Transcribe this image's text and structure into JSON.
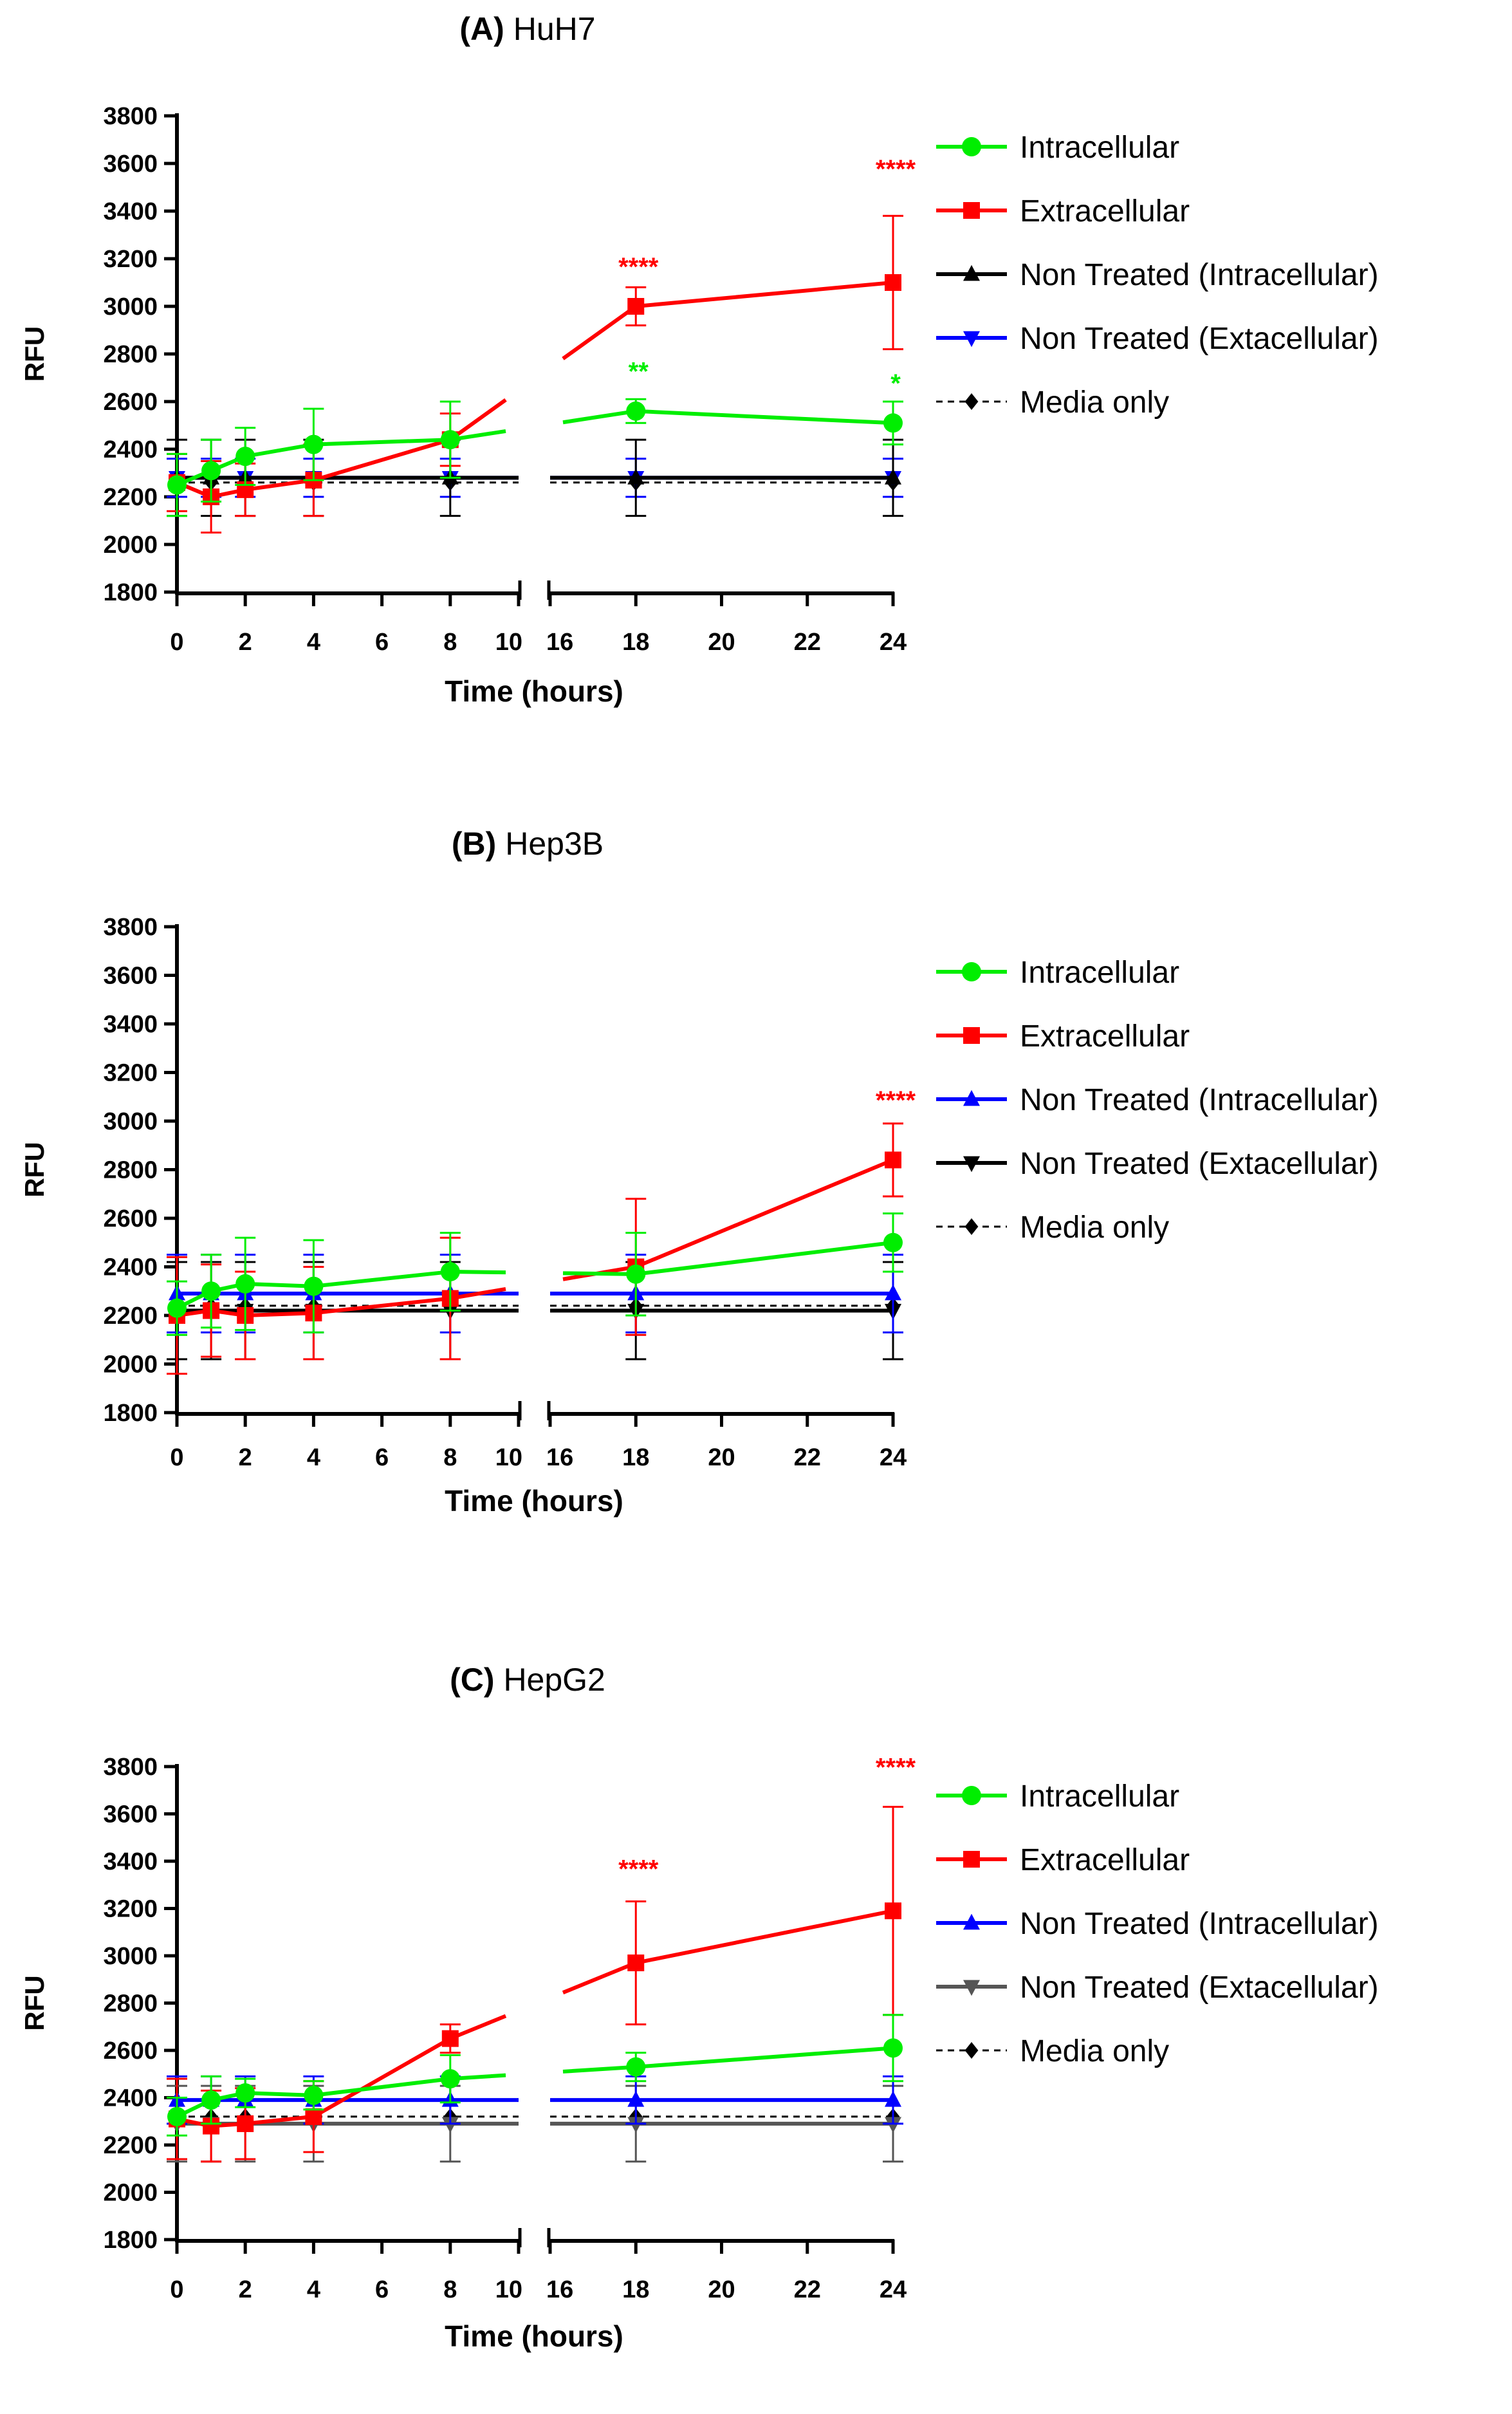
{
  "chart_data": [
    {
      "type": "line",
      "panel_label": "(A)",
      "title": "HuH7",
      "xlabel": "Time (hours)",
      "ylabel": "RFU",
      "ylim": [
        1800,
        3800
      ],
      "yticks": [
        1800,
        2000,
        2200,
        2400,
        2600,
        2800,
        3000,
        3200,
        3400,
        3600,
        3800
      ],
      "xticks_left": [
        0,
        2,
        4,
        6,
        8,
        10
      ],
      "xticks_right": [
        16,
        18,
        20,
        22,
        24
      ],
      "x_break": [
        10,
        16
      ],
      "legend_position": "right",
      "series": [
        {
          "name": "Intracellular",
          "color": "#00ee00",
          "marker": "circle",
          "dashed": false,
          "x": [
            0,
            1,
            2,
            4,
            8,
            18,
            24
          ],
          "values": [
            2250,
            2310,
            2370,
            2420,
            2440,
            2560,
            2510
          ],
          "errors": [
            130,
            130,
            120,
            150,
            160,
            50,
            90
          ]
        },
        {
          "name": "Extracellular",
          "color": "#ff0000",
          "marker": "square",
          "dashed": false,
          "x": [
            0,
            1,
            2,
            4,
            8,
            18,
            24
          ],
          "values": [
            2260,
            2200,
            2230,
            2270,
            2440,
            3000,
            3100
          ],
          "errors": [
            120,
            150,
            110,
            150,
            110,
            80,
            280
          ]
        },
        {
          "name": "Non Treated (Intracellular)",
          "color": "#000000",
          "marker": "triangle-up",
          "dashed": false,
          "x": [
            0,
            1,
            2,
            4,
            8,
            18,
            24
          ],
          "values": [
            2280,
            2280,
            2280,
            2280,
            2280,
            2280,
            2280
          ],
          "errors": [
            160,
            160,
            160,
            160,
            160,
            160,
            160
          ]
        },
        {
          "name": "Non Treated (Extacellular)",
          "color": "#0000ff",
          "marker": "triangle-down",
          "dashed": false,
          "x": [
            0,
            1,
            2,
            4,
            8,
            18,
            24
          ],
          "values": [
            2280,
            2280,
            2280,
            2280,
            2280,
            2280,
            2280
          ],
          "errors": [
            80,
            80,
            80,
            80,
            80,
            80,
            80
          ]
        },
        {
          "name": "Media only",
          "color": "#000000",
          "marker": "diamond",
          "dashed": true,
          "x": [
            0,
            1,
            2,
            4,
            8,
            18,
            24
          ],
          "values": [
            2260,
            2260,
            2260,
            2260,
            2260,
            2260,
            2260
          ],
          "errors": [
            0,
            0,
            0,
            0,
            0,
            0,
            0
          ]
        }
      ],
      "annotations": [
        {
          "text": "****",
          "x": 18,
          "y": 3130,
          "color": "#ff0000"
        },
        {
          "text": "**",
          "x": 18,
          "y": 2690,
          "color": "#00ee00"
        },
        {
          "text": "****",
          "x": 24,
          "y": 3540,
          "color": "#ff0000"
        },
        {
          "text": "*",
          "x": 24,
          "y": 2640,
          "color": "#00ee00"
        }
      ]
    },
    {
      "type": "line",
      "panel_label": "(B)",
      "title": "Hep3B",
      "xlabel": "Time (hours)",
      "ylabel": "RFU",
      "ylim": [
        1800,
        3800
      ],
      "yticks": [
        1800,
        2000,
        2200,
        2400,
        2600,
        2800,
        3000,
        3200,
        3400,
        3600,
        3800
      ],
      "xticks_left": [
        0,
        2,
        4,
        6,
        8,
        10
      ],
      "xticks_right": [
        16,
        18,
        20,
        22,
        24
      ],
      "x_break": [
        10,
        16
      ],
      "legend_position": "right",
      "series": [
        {
          "name": "Intracellular",
          "color": "#00ee00",
          "marker": "circle",
          "dashed": false,
          "x": [
            0,
            1,
            2,
            4,
            8,
            18,
            24
          ],
          "values": [
            2230,
            2300,
            2330,
            2320,
            2380,
            2370,
            2500
          ],
          "errors": [
            110,
            150,
            190,
            190,
            160,
            170,
            120
          ]
        },
        {
          "name": "Extracellular",
          "color": "#ff0000",
          "marker": "square",
          "dashed": false,
          "x": [
            0,
            1,
            2,
            4,
            8,
            18,
            24
          ],
          "values": [
            2200,
            2220,
            2200,
            2210,
            2270,
            2400,
            2840
          ],
          "errors": [
            240,
            190,
            180,
            190,
            250,
            280,
            150
          ]
        },
        {
          "name": "Non Treated (Intracellular)",
          "color": "#0000ff",
          "marker": "triangle-up",
          "dashed": false,
          "x": [
            0,
            1,
            2,
            4,
            8,
            18,
            24
          ],
          "values": [
            2290,
            2290,
            2290,
            2290,
            2290,
            2290,
            2290
          ],
          "errors": [
            160,
            160,
            160,
            160,
            160,
            160,
            160
          ]
        },
        {
          "name": "Non Treated (Extacellular)",
          "color": "#000000",
          "marker": "triangle-down",
          "dashed": false,
          "x": [
            0,
            1,
            2,
            4,
            8,
            18,
            24
          ],
          "values": [
            2220,
            2220,
            2220,
            2220,
            2220,
            2220,
            2220
          ],
          "errors": [
            200,
            200,
            200,
            200,
            200,
            200,
            200
          ]
        },
        {
          "name": "Media only",
          "color": "#000000",
          "marker": "diamond",
          "dashed": true,
          "x": [
            0,
            1,
            2,
            4,
            8,
            18,
            24
          ],
          "values": [
            2240,
            2240,
            2240,
            2240,
            2240,
            2240,
            2240
          ],
          "errors": [
            0,
            0,
            0,
            0,
            0,
            0,
            0
          ]
        }
      ],
      "annotations": [
        {
          "text": "****",
          "x": 24,
          "y": 3050,
          "color": "#ff0000"
        }
      ]
    },
    {
      "type": "line",
      "panel_label": "(C)",
      "title": "HepG2",
      "xlabel": "Time (hours)",
      "ylabel": "RFU",
      "ylim": [
        1800,
        3800
      ],
      "yticks": [
        1800,
        2000,
        2200,
        2400,
        2600,
        2800,
        3000,
        3200,
        3400,
        3600,
        3800
      ],
      "xticks_left": [
        0,
        2,
        4,
        6,
        8,
        10
      ],
      "xticks_right": [
        16,
        18,
        20,
        22,
        24
      ],
      "x_break": [
        10,
        16
      ],
      "legend_position": "right",
      "series": [
        {
          "name": "Intracellular",
          "color": "#00ee00",
          "marker": "circle",
          "dashed": false,
          "x": [
            0,
            1,
            2,
            4,
            8,
            18,
            24
          ],
          "values": [
            2320,
            2390,
            2420,
            2410,
            2480,
            2530,
            2610
          ],
          "errors": [
            80,
            100,
            60,
            60,
            100,
            60,
            140
          ]
        },
        {
          "name": "Extracellular",
          "color": "#ff0000",
          "marker": "square",
          "dashed": false,
          "x": [
            0,
            1,
            2,
            4,
            8,
            18,
            24
          ],
          "values": [
            2310,
            2280,
            2290,
            2320,
            2650,
            2970,
            3190
          ],
          "errors": [
            170,
            150,
            150,
            150,
            60,
            260,
            440
          ]
        },
        {
          "name": "Non Treated (Intracellular)",
          "color": "#0000ff",
          "marker": "triangle-up",
          "dashed": false,
          "x": [
            0,
            1,
            2,
            4,
            8,
            18,
            24
          ],
          "values": [
            2390,
            2390,
            2390,
            2390,
            2390,
            2390,
            2390
          ],
          "errors": [
            100,
            100,
            100,
            100,
            100,
            100,
            100
          ]
        },
        {
          "name": "Non Treated (Extacellular)",
          "color": "#555555",
          "marker": "triangle-down",
          "dashed": false,
          "x": [
            0,
            1,
            2,
            4,
            8,
            18,
            24
          ],
          "values": [
            2290,
            2290,
            2290,
            2290,
            2290,
            2290,
            2290
          ],
          "errors": [
            160,
            160,
            160,
            160,
            160,
            160,
            160
          ]
        },
        {
          "name": "Media only",
          "color": "#000000",
          "marker": "diamond",
          "dashed": true,
          "x": [
            0,
            1,
            2,
            4,
            8,
            18,
            24
          ],
          "values": [
            2320,
            2320,
            2320,
            2320,
            2320,
            2320,
            2320
          ],
          "errors": [
            0,
            0,
            0,
            0,
            0,
            0,
            0
          ]
        }
      ],
      "annotations": [
        {
          "text": "****",
          "x": 18,
          "y": 3330,
          "color": "#ff0000"
        },
        {
          "text": "****",
          "x": 24,
          "y": 3760,
          "color": "#ff0000"
        }
      ]
    }
  ]
}
